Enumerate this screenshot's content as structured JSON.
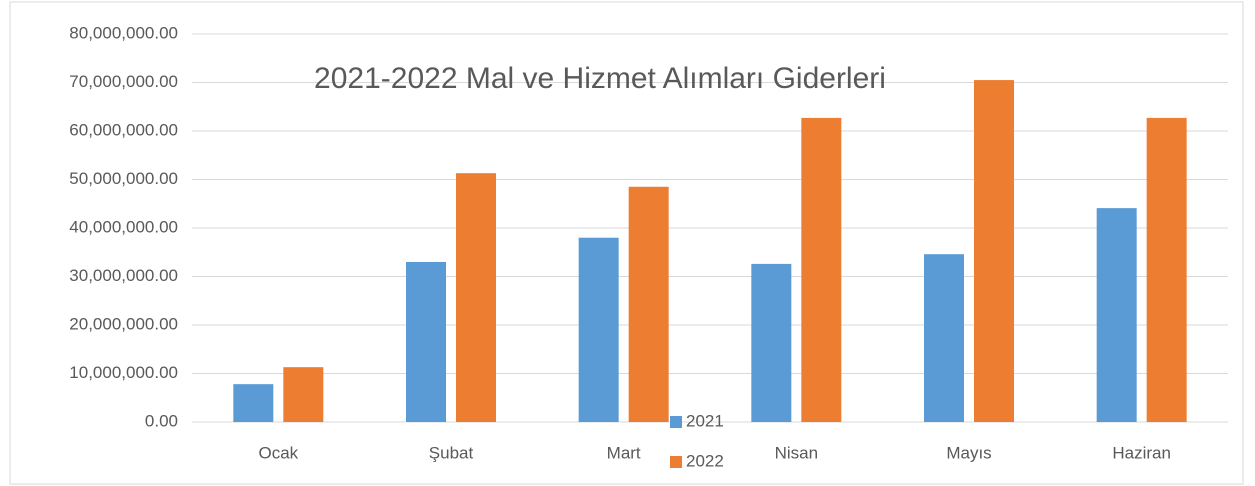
{
  "chart_data": {
    "type": "bar",
    "title": "2021-2022 Mal ve Hizmet Alımları  Giderleri",
    "categories": [
      "Ocak",
      "Şubat",
      "Mart",
      "Nisan",
      "Mayıs",
      "Haziran"
    ],
    "series": [
      {
        "name": "2021",
        "color": "#5b9bd5",
        "values": [
          7800000,
          33000000,
          38000000,
          32600000,
          34600000,
          44100000
        ]
      },
      {
        "name": "2022",
        "color": "#ed7d31",
        "values": [
          11300000,
          51300000,
          48500000,
          62700000,
          70500000,
          62700000
        ]
      }
    ],
    "ylim": [
      0,
      80000000
    ],
    "yticks": [
      {
        "value": 0,
        "label": "0.00"
      },
      {
        "value": 10000000,
        "label": "10,000,000.00"
      },
      {
        "value": 20000000,
        "label": "20,000,000.00"
      },
      {
        "value": 30000000,
        "label": "30,000,000.00"
      },
      {
        "value": 40000000,
        "label": "40,000,000.00"
      },
      {
        "value": 50000000,
        "label": "50,000,000.00"
      },
      {
        "value": 60000000,
        "label": "60,000,000.00"
      },
      {
        "value": 70000000,
        "label": "70,000,000.00"
      },
      {
        "value": 80000000,
        "label": "80,000,000.00"
      }
    ],
    "grid": true
  }
}
